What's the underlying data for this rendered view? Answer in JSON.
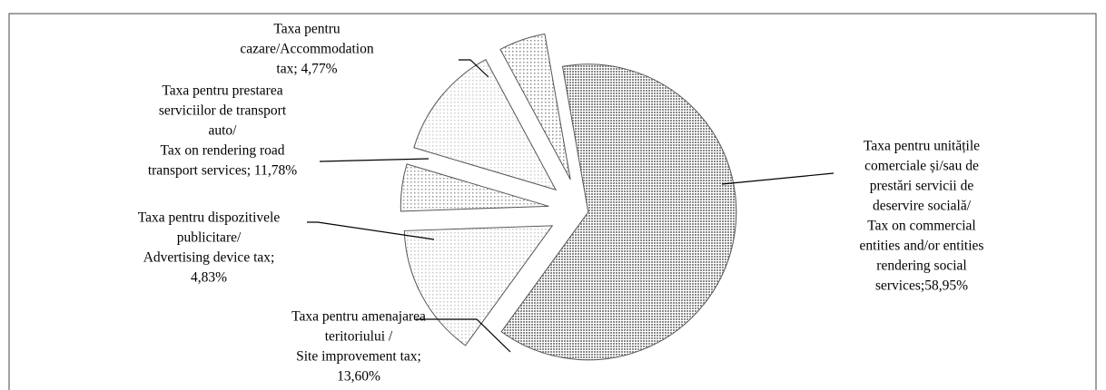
{
  "chart_data": {
    "type": "pie",
    "labels": [
      [
        "Taxa pentru unitățile",
        "comerciale și/sau de",
        "prestări servicii de",
        "deservire socială/",
        "Tax on commercial",
        "entities and/or entities",
        "rendering social",
        "services;58,95%"
      ],
      [
        "Taxa pentru amenajarea",
        "teritoriului /",
        "Site improvement tax;",
        "13,60%"
      ],
      [
        "Taxa pentru dispozitivele",
        "publicitare/",
        "Advertising device tax;",
        "4,83%"
      ],
      [
        "Taxa pentru prestarea",
        "serviciilor de transport",
        "auto/",
        "Tax on rendering road",
        "transport services; 11,78%"
      ],
      [
        "Taxa pentru",
        "cazare/Accommodation",
        "tax; 4,77%"
      ]
    ],
    "values": [
      58.95,
      13.6,
      4.83,
      11.78,
      4.77
    ],
    "colors": [
      "#8a8a8a",
      "#c8c8c8",
      "#9a9a9a",
      "#cfcfcf",
      "#8f8f8f"
    ]
  }
}
